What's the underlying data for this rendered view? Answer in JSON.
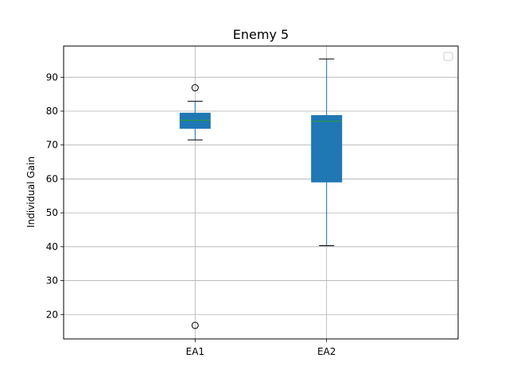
{
  "chart_data": {
    "type": "box",
    "title": "Enemy 5",
    "xlabel": "",
    "ylabel": "Individual Gain",
    "ylim": [
      12.8,
      99.2
    ],
    "yticks": [
      20,
      30,
      40,
      50,
      60,
      70,
      80,
      90
    ],
    "grid": true,
    "legend": {
      "placement": "top-right",
      "entries": []
    },
    "categories": [
      "EA1",
      "EA2"
    ],
    "boxes": [
      {
        "name": "EA1",
        "whisker_low": 71.5,
        "q1": 74.9,
        "median": 77.3,
        "q3": 79.4,
        "whisker_high": 82.9,
        "outliers": [
          86.9,
          16.8
        ]
      },
      {
        "name": "EA2",
        "whisker_low": 40.3,
        "q1": 59.1,
        "median": 77.0,
        "q3": 78.7,
        "whisker_high": 95.4,
        "outliers": []
      }
    ],
    "colors": {
      "box_fill": "#1f77b4",
      "median": "#2ca02c",
      "grid": "#b0b0b0"
    }
  }
}
